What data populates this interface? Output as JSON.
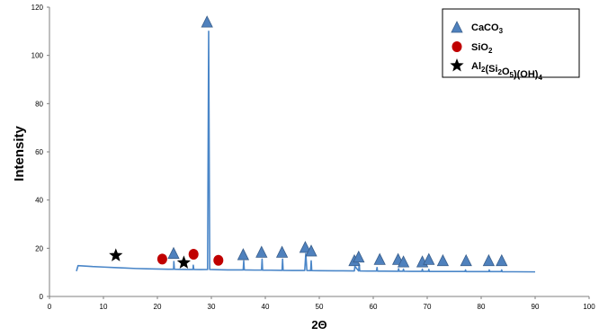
{
  "chart_data": {
    "type": "line",
    "xlabel": "2Θ",
    "ylabel": "Intensity",
    "xlim": [
      0,
      100
    ],
    "ylim": [
      0,
      120
    ],
    "xticks": [
      0,
      10,
      20,
      30,
      40,
      50,
      60,
      70,
      80,
      90,
      100
    ],
    "yticks": [
      0,
      20,
      40,
      60,
      80,
      100,
      120
    ],
    "grid": false,
    "legend_position": "top-right",
    "line_color": "#4a86c8",
    "series": [
      {
        "x": [
          5,
          5.3,
          6,
          8,
          10,
          12,
          14,
          16,
          18,
          20,
          21,
          22,
          23,
          23.05,
          23.15,
          24,
          26,
          26.6,
          26.65,
          26.75,
          28,
          29.3,
          29.4,
          29.5,
          29.6,
          29.7,
          31,
          33,
          35.9,
          36.0,
          36.1,
          38,
          39.3,
          39.4,
          39.5,
          41,
          43.1,
          43.2,
          43.3,
          45,
          47.3,
          47.5,
          47.7,
          48.4,
          48.5,
          48.6,
          50,
          53,
          56.5,
          56.6,
          57.3,
          57.4,
          57.5,
          59,
          60.6,
          60.7,
          60.8,
          62,
          64.6,
          64.7,
          64.8,
          65.5,
          65.6,
          65.7,
          67,
          69.0,
          69.1,
          69.2,
          70.2,
          70.3,
          70.4,
          72,
          77.0,
          77.1,
          77.2,
          79,
          81.4,
          81.5,
          81.6,
          83.7,
          83.8,
          83.9,
          86,
          90
        ],
        "y": [
          10.5,
          12.8,
          12.7,
          12.4,
          12.2,
          12.0,
          11.8,
          11.6,
          11.5,
          11.4,
          11.35,
          11.3,
          11.3,
          14.5,
          11.3,
          11.25,
          11.2,
          11.2,
          13.0,
          11.2,
          11.15,
          11.2,
          60,
          110,
          60,
          11.2,
          11.1,
          11.0,
          11.0,
          14.8,
          11.0,
          10.95,
          10.95,
          15.5,
          10.9,
          10.9,
          10.85,
          15.5,
          10.85,
          10.8,
          10.8,
          17.8,
          10.8,
          10.75,
          14.8,
          10.75,
          10.7,
          10.65,
          10.6,
          12.5,
          10.6,
          13.5,
          10.6,
          10.55,
          10.55,
          12.0,
          10.5,
          10.5,
          10.45,
          11.5,
          10.45,
          10.45,
          11.3,
          10.45,
          10.4,
          10.4,
          11.3,
          10.4,
          10.4,
          11.2,
          10.35,
          10.35,
          10.35,
          11.0,
          10.3,
          10.3,
          10.3,
          11.0,
          10.3,
          10.3,
          11.0,
          10.25,
          10.25,
          10.2
        ]
      }
    ],
    "markers": [
      {
        "name": "CaCO3",
        "shape": "triangle",
        "color": "#4f81bd",
        "points": [
          [
            23,
            18
          ],
          [
            29.2,
            114
          ],
          [
            35.9,
            17.5
          ],
          [
            39.3,
            18.5
          ],
          [
            43.1,
            18.5
          ],
          [
            47.4,
            20.5
          ],
          [
            48.5,
            19
          ],
          [
            56.5,
            15
          ],
          [
            57.3,
            16.5
          ],
          [
            61.2,
            15.5
          ],
          [
            64.6,
            15.5
          ],
          [
            65.6,
            14.5
          ],
          [
            69.1,
            14.5
          ],
          [
            70.3,
            15.5
          ],
          [
            72.9,
            15
          ],
          [
            77.2,
            15
          ],
          [
            81.4,
            15
          ],
          [
            83.8,
            15
          ]
        ]
      },
      {
        "name": "SiO2",
        "shape": "circle",
        "color": "#c00000",
        "points": [
          [
            20.9,
            15.5
          ],
          [
            26.7,
            17.5
          ],
          [
            31.3,
            15
          ]
        ]
      },
      {
        "name": "Al2(Si2O5)(OH)4",
        "shape": "star",
        "color": "#000000",
        "points": [
          [
            12.3,
            17
          ],
          [
            24.9,
            14
          ]
        ]
      }
    ],
    "legend": [
      {
        "base": "CaCO",
        "sub": "3",
        "rest": ""
      },
      {
        "base": "SiO",
        "sub": "2",
        "rest": ""
      },
      {
        "base": "Al",
        "parts": [
          [
            "Al",
            "2"
          ],
          [
            "(Si",
            "2"
          ],
          [
            "O",
            "5"
          ],
          [
            ")(OH)",
            "4"
          ]
        ]
      }
    ]
  }
}
